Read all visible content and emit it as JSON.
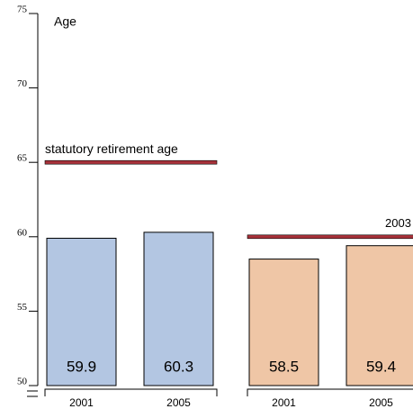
{
  "chart_data": {
    "type": "bar",
    "ylabel": "Age",
    "categories": [
      "2001",
      "2005",
      "2001",
      "2005"
    ],
    "values": [
      59.9,
      60.3,
      58.5,
      59.4
    ],
    "colors": [
      "#b3c6e2",
      "#b3c6e2",
      "#efc6a6",
      "#efc6a6"
    ],
    "ylim": [
      50,
      75
    ],
    "yticks": [
      50,
      55,
      60,
      65,
      70,
      75
    ],
    "reference_lines": [
      {
        "label": "statutory retirement age",
        "value": 65,
        "color": "#a8323a"
      },
      {
        "label": "2003",
        "value": 60,
        "color": "#a8323a"
      }
    ]
  }
}
